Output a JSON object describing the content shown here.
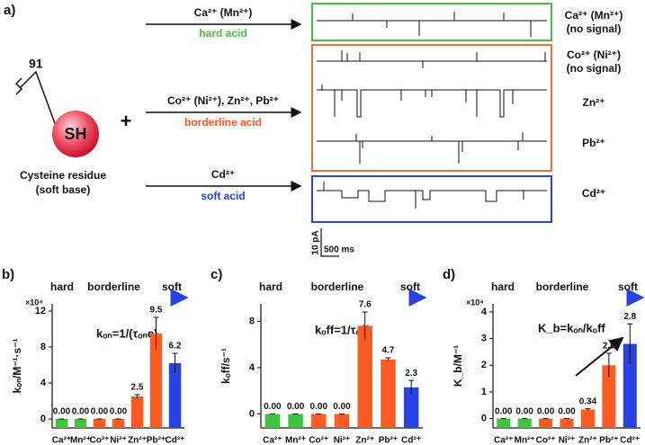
{
  "diagram": {
    "label": "a)",
    "residue_number": "91",
    "group": "SH",
    "plus": "+",
    "residue_name": "Cysteine residue",
    "residue_base": "(soft base)",
    "arrows": [
      {
        "ions": "Ca²⁺ (Mn²⁺)",
        "class": "hard acid"
      },
      {
        "ions": "Co²⁺ (Ni²⁺), Zn²⁺, Pb²⁺",
        "class": "borderline acid"
      },
      {
        "ions": "Cd²⁺",
        "class": "soft acid"
      }
    ],
    "traces": [
      {
        "ion": "Ca²⁺ (Mn²⁺)",
        "note": "(no signal)"
      },
      {
        "ion": "Co²⁺ (Ni²⁺)",
        "note": "(no signal)"
      },
      {
        "ion": "Zn²⁺"
      },
      {
        "ion": "Pb²⁺"
      },
      {
        "ion": "Cd²⁺"
      }
    ],
    "scale_y": "10 pA",
    "scale_x": "500 ms"
  },
  "chart_data": [
    {
      "type": "bar",
      "label": "b)",
      "band_labels": [
        "hard",
        "borderline",
        "soft"
      ],
      "equation": "kₒₙ=1/(τₒₙc)",
      "y_label": "kₒₙ/M⁻¹·s⁻¹",
      "y_multiplier": "×10⁴",
      "categories": [
        "Ca²⁺",
        "Mn²⁺",
        "Co²⁺",
        "Ni²⁺",
        "Zn²⁺",
        "Pb²⁺",
        "Cd²⁺"
      ],
      "values": [
        0,
        0,
        0,
        0,
        2.5,
        9.5,
        6.2
      ],
      "errors": [
        0,
        0,
        0,
        0,
        0.2,
        1.8,
        1.1
      ],
      "value_labels": [
        "0.00",
        "0.00",
        "0.00",
        "0.00",
        "2.5",
        "9.5",
        "6.2"
      ],
      "colors": [
        "#3ec43e",
        "#3ec43e",
        "#ff5a1f",
        "#ff5a1f",
        "#ff5a1f",
        "#ff5a1f",
        "#2742e6"
      ],
      "ylim": [
        -1,
        12.8
      ],
      "yticks": [
        0,
        4,
        8,
        12
      ]
    },
    {
      "type": "bar",
      "label": "c)",
      "band_labels": [
        "hard",
        "borderline",
        "soft"
      ],
      "equation": "kₒff=1/τₒff",
      "y_label": "kₒff/s⁻¹",
      "categories": [
        "Ca²⁺",
        "Mn²⁺",
        "Co²⁺",
        "Ni²⁺",
        "Zn²⁺",
        "Pb²⁺",
        "Cd²⁺"
      ],
      "values": [
        0,
        0,
        0,
        0,
        7.6,
        4.7,
        2.3
      ],
      "errors": [
        0,
        0,
        0,
        0,
        1.2,
        0.15,
        0.6
      ],
      "value_labels": [
        "0.00",
        "0.00",
        "0.00",
        "0.00",
        "7.6",
        "4.7",
        "2.3"
      ],
      "colors": [
        "#3ec43e",
        "#3ec43e",
        "#ff5a1f",
        "#ff5a1f",
        "#ff5a1f",
        "#ff5a1f",
        "#2742e6"
      ],
      "ylim": [
        -1.2,
        9.5
      ],
      "yticks": [
        0,
        4,
        8
      ]
    },
    {
      "type": "bar",
      "label": "d)",
      "band_labels": [
        "hard",
        "borderline",
        "soft"
      ],
      "equation": "K_b=kₒₙ/kₒff",
      "y_label": "K_b/M⁻¹",
      "y_multiplier": "×10⁴",
      "categories": [
        "Ca²⁺",
        "Mn²⁺",
        "Co²⁺",
        "Ni²⁺",
        "Zn²⁺",
        "Pb²⁺",
        "Cd²⁺"
      ],
      "values": [
        0,
        0,
        0,
        0,
        0.34,
        2.0,
        2.8
      ],
      "errors": [
        0,
        0,
        0,
        0,
        0.03,
        0.45,
        0.75
      ],
      "value_labels": [
        "0.00",
        "0.00",
        "0.00",
        "0.00",
        "0.34",
        "2.0",
        "2.8"
      ],
      "colors": [
        "#3ec43e",
        "#3ec43e",
        "#ff5a1f",
        "#ff5a1f",
        "#ff5a1f",
        "#ff5a1f",
        "#2742e6"
      ],
      "ylim": [
        -0.35,
        4.3
      ],
      "yticks": [
        0,
        1,
        2,
        3,
        4
      ]
    }
  ]
}
